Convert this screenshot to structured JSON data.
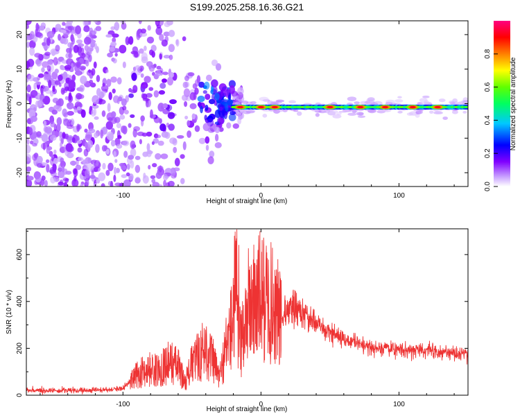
{
  "title": "S199.2025.258.16.36.G21",
  "chart_data": [
    {
      "type": "heatmap",
      "name": "spectrogram",
      "xlabel": "Height of straight line (km)",
      "ylabel": "Frequency (Hz)",
      "xlim": [
        -170,
        150
      ],
      "ylim": [
        -24,
        24
      ],
      "x_ticks": [
        -100,
        0,
        100
      ],
      "x_tick_labels": [
        "-100",
        "0",
        "100"
      ],
      "y_ticks": [
        -20,
        -10,
        0,
        10,
        20
      ],
      "y_tick_labels": [
        "-20",
        "-10",
        "0",
        "10",
        "20"
      ],
      "colorbar": {
        "label": "Normalized spectral amplitude",
        "range": [
          0,
          1
        ],
        "ticks": [
          0.0,
          0.2,
          0.4,
          0.6,
          0.8
        ],
        "tick_labels": [
          "0.0",
          "0.2",
          "0.4",
          "0.6",
          "0.8"
        ],
        "colors": [
          "#ffffff",
          "#c8a0ff",
          "#8000ff",
          "#0000ff",
          "#00c8ff",
          "#00ff60",
          "#60ff00",
          "#ffff00",
          "#ff8000",
          "#ff0000",
          "#ff0080"
        ]
      },
      "description_points": {
        "noise_region_x": [
          -170,
          -20
        ],
        "signal_line_x": [
          -20,
          150
        ],
        "signal_frequency": -1,
        "strong_peaks_x": [
          -15,
          0,
          10,
          50,
          72,
          90,
          110,
          128
        ]
      }
    },
    {
      "type": "line",
      "name": "snr",
      "xlabel": "Height of straight line (km)",
      "ylabel": "SNR (10 * v/v)",
      "xlim": [
        -170,
        150
      ],
      "ylim": [
        0,
        710
      ],
      "x_ticks": [
        -100,
        0,
        100
      ],
      "x_tick_labels": [
        "-100",
        "0",
        "100"
      ],
      "y_ticks": [
        0,
        200,
        400,
        600
      ],
      "y_tick_labels": [
        "0",
        "200",
        "400",
        "600"
      ],
      "color": "#ee3333",
      "series": [
        {
          "name": "SNR",
          "x": [
            -170,
            -140,
            -110,
            -100,
            -95,
            -90,
            -85,
            -80,
            -75,
            -70,
            -65,
            -60,
            -55,
            -50,
            -45,
            -40,
            -35,
            -30,
            -25,
            -22,
            -20,
            -18,
            -15,
            -12,
            -10,
            -5,
            0,
            5,
            10,
            15,
            20,
            25,
            30,
            40,
            50,
            60,
            70,
            80,
            90,
            100,
            110,
            120,
            130,
            140,
            150
          ],
          "values": [
            20,
            20,
            22,
            30,
            60,
            90,
            110,
            120,
            110,
            140,
            150,
            130,
            60,
            140,
            180,
            220,
            160,
            80,
            230,
            300,
            350,
            320,
            250,
            300,
            400,
            420,
            450,
            430,
            400,
            330,
            380,
            370,
            340,
            310,
            270,
            240,
            220,
            205,
            200,
            195,
            192,
            190,
            185,
            182,
            178
          ]
        }
      ]
    }
  ]
}
